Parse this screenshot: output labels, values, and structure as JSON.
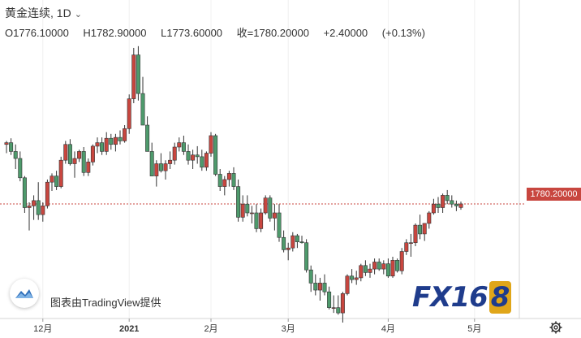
{
  "header": {
    "symbol_title": "黄金连续, 1D",
    "ohlc": {
      "open": "O1776.10000",
      "high": "H1782.90000",
      "low": "L1773.60000",
      "close": "收=1780.20000",
      "change": "+2.40000",
      "change_pct": "(+0.13%)"
    }
  },
  "price_tag": "1780.20000",
  "credit": "图表由TradingView提供",
  "brand": {
    "fx": "FX16",
    "eight": "8"
  },
  "colors": {
    "up": "#c8463f",
    "down": "#4e9a6c",
    "grid": "#f0f0f0",
    "last_line": "#c8463f"
  },
  "chart_data": {
    "type": "candlestick",
    "symbol": "黄金连续",
    "interval": "1D",
    "x_ticks": [
      {
        "label": "12月",
        "index": 8
      },
      {
        "label": "2021",
        "index": 27
      },
      {
        "label": "2月",
        "index": 45
      },
      {
        "label": "3月",
        "index": 62
      },
      {
        "label": "4月",
        "index": 84
      },
      {
        "label": "5月",
        "index": 103
      }
    ],
    "ylim": [
      1670,
      1970
    ],
    "last_price": 1780.2,
    "candles": [
      [
        1848,
        1852,
        1838,
        1850
      ],
      [
        1850,
        1855,
        1836,
        1840
      ],
      [
        1840,
        1848,
        1820,
        1832
      ],
      [
        1832,
        1840,
        1806,
        1810
      ],
      [
        1810,
        1812,
        1770,
        1776
      ],
      [
        1776,
        1782,
        1750,
        1778
      ],
      [
        1778,
        1790,
        1762,
        1784
      ],
      [
        1784,
        1805,
        1762,
        1768
      ],
      [
        1768,
        1782,
        1760,
        1778
      ],
      [
        1778,
        1808,
        1775,
        1805
      ],
      [
        1805,
        1815,
        1795,
        1812
      ],
      [
        1812,
        1818,
        1796,
        1800
      ],
      [
        1800,
        1834,
        1798,
        1830
      ],
      [
        1830,
        1852,
        1826,
        1848
      ],
      [
        1848,
        1854,
        1824,
        1826
      ],
      [
        1826,
        1840,
        1810,
        1832
      ],
      [
        1832,
        1842,
        1828,
        1840
      ],
      [
        1840,
        1845,
        1812,
        1816
      ],
      [
        1816,
        1832,
        1812,
        1828
      ],
      [
        1828,
        1848,
        1824,
        1846
      ],
      [
        1846,
        1856,
        1838,
        1850
      ],
      [
        1850,
        1856,
        1836,
        1840
      ],
      [
        1840,
        1862,
        1836,
        1855
      ],
      [
        1855,
        1860,
        1842,
        1848
      ],
      [
        1848,
        1860,
        1840,
        1856
      ],
      [
        1856,
        1864,
        1848,
        1852
      ],
      [
        1852,
        1870,
        1850,
        1866
      ],
      [
        1866,
        1905,
        1860,
        1900
      ],
      [
        1900,
        1958,
        1895,
        1950
      ],
      [
        1950,
        1960,
        1898,
        1906
      ],
      [
        1906,
        1925,
        1870,
        1870
      ],
      [
        1870,
        1880,
        1840,
        1840
      ],
      [
        1840,
        1850,
        1812,
        1812
      ],
      [
        1812,
        1830,
        1800,
        1826
      ],
      [
        1826,
        1838,
        1816,
        1818
      ],
      [
        1818,
        1830,
        1808,
        1826
      ],
      [
        1826,
        1840,
        1820,
        1830
      ],
      [
        1830,
        1850,
        1825,
        1845
      ],
      [
        1845,
        1856,
        1840,
        1850
      ],
      [
        1850,
        1858,
        1836,
        1840
      ],
      [
        1840,
        1848,
        1825,
        1830
      ],
      [
        1830,
        1842,
        1820,
        1836
      ],
      [
        1836,
        1846,
        1826,
        1834
      ],
      [
        1834,
        1842,
        1818,
        1822
      ],
      [
        1822,
        1840,
        1818,
        1838
      ],
      [
        1838,
        1862,
        1834,
        1858
      ],
      [
        1858,
        1860,
        1812,
        1814
      ],
      [
        1814,
        1820,
        1795,
        1800
      ],
      [
        1800,
        1812,
        1790,
        1808
      ],
      [
        1808,
        1818,
        1800,
        1815
      ],
      [
        1815,
        1822,
        1796,
        1800
      ],
      [
        1800,
        1808,
        1760,
        1765
      ],
      [
        1765,
        1790,
        1760,
        1780
      ],
      [
        1780,
        1790,
        1766,
        1770
      ],
      [
        1770,
        1778,
        1758,
        1770
      ],
      [
        1770,
        1780,
        1748,
        1752
      ],
      [
        1752,
        1775,
        1748,
        1770
      ],
      [
        1770,
        1790,
        1768,
        1787
      ],
      [
        1787,
        1790,
        1760,
        1764
      ],
      [
        1764,
        1780,
        1750,
        1770
      ],
      [
        1770,
        1780,
        1737,
        1742
      ],
      [
        1742,
        1750,
        1725,
        1728
      ],
      [
        1728,
        1736,
        1716,
        1730
      ],
      [
        1730,
        1748,
        1726,
        1744
      ],
      [
        1744,
        1746,
        1730,
        1737
      ],
      [
        1737,
        1744,
        1735,
        1736
      ],
      [
        1736,
        1740,
        1702,
        1705
      ],
      [
        1705,
        1710,
        1680,
        1690
      ],
      [
        1690,
        1700,
        1676,
        1682
      ],
      [
        1682,
        1696,
        1670,
        1690
      ],
      [
        1690,
        1700,
        1676,
        1680
      ],
      [
        1680,
        1686,
        1660,
        1662
      ],
      [
        1662,
        1676,
        1656,
        1662
      ],
      [
        1662,
        1676,
        1654,
        1656
      ],
      [
        1656,
        1680,
        1645,
        1678
      ],
      [
        1678,
        1700,
        1676,
        1698
      ],
      [
        1698,
        1706,
        1690,
        1694
      ],
      [
        1694,
        1704,
        1688,
        1696
      ],
      [
        1696,
        1712,
        1692,
        1710
      ],
      [
        1710,
        1716,
        1698,
        1702
      ],
      [
        1702,
        1712,
        1696,
        1706
      ],
      [
        1706,
        1718,
        1700,
        1714
      ],
      [
        1714,
        1718,
        1704,
        1706
      ],
      [
        1706,
        1716,
        1700,
        1712
      ],
      [
        1712,
        1718,
        1696,
        1698
      ],
      [
        1698,
        1720,
        1696,
        1716
      ],
      [
        1716,
        1718,
        1702,
        1704
      ],
      [
        1704,
        1730,
        1700,
        1726
      ],
      [
        1726,
        1740,
        1722,
        1736
      ],
      [
        1736,
        1746,
        1720,
        1736
      ],
      [
        1736,
        1758,
        1732,
        1756
      ],
      [
        1756,
        1768,
        1740,
        1746
      ],
      [
        1746,
        1758,
        1738,
        1758
      ],
      [
        1758,
        1772,
        1752,
        1770
      ],
      [
        1770,
        1786,
        1768,
        1780
      ],
      [
        1780,
        1788,
        1770,
        1776
      ],
      [
        1776,
        1792,
        1770,
        1790
      ],
      [
        1790,
        1796,
        1780,
        1784
      ],
      [
        1784,
        1790,
        1776,
        1780
      ],
      [
        1780,
        1784,
        1772,
        1778
      ],
      [
        1776.1,
        1782.9,
        1773.6,
        1780.2
      ]
    ]
  }
}
